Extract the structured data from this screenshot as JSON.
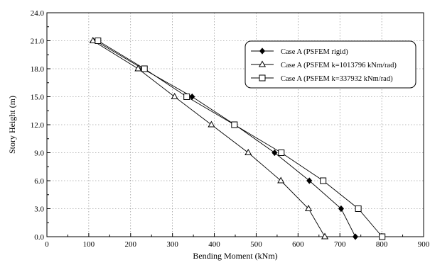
{
  "chart_data": {
    "type": "line",
    "xlabel": "Bending Moment (kNm)",
    "ylabel": "Story Height (m)",
    "xlim": [
      0,
      900
    ],
    "ylim": [
      0,
      24
    ],
    "x_ticks": [
      "0",
      "100",
      "200",
      "300",
      "400",
      "500",
      "600",
      "700",
      "800",
      "900"
    ],
    "y_ticks": [
      "0.0",
      "3.0",
      "6.0",
      "9.0",
      "12.0",
      "15.0",
      "18.0",
      "21.0",
      "24.0"
    ],
    "grid": true,
    "legend_position": "top-right",
    "series": [
      {
        "name": "Case A (PSFEM rigid)",
        "marker": "diamond-filled",
        "points": [
          [
            737,
            0
          ],
          [
            703,
            3
          ],
          [
            627,
            6
          ],
          [
            544,
            9
          ],
          [
            449,
            12
          ],
          [
            347,
            15
          ],
          [
            229,
            18
          ],
          [
            116,
            21
          ]
        ]
      },
      {
        "name": "Case A (PSFEM k=1013796 kNm/rad)",
        "marker": "triangle-open",
        "points": [
          [
            664,
            0
          ],
          [
            625,
            3
          ],
          [
            559,
            6
          ],
          [
            481,
            9
          ],
          [
            393,
            12
          ],
          [
            305,
            15
          ],
          [
            218,
            18
          ],
          [
            110,
            21
          ]
        ]
      },
      {
        "name": "Case A (PSFEM k=337932 kNm/rad)",
        "marker": "square-open",
        "points": [
          [
            801,
            0
          ],
          [
            744,
            3
          ],
          [
            660,
            6
          ],
          [
            560,
            9
          ],
          [
            448,
            12
          ],
          [
            334,
            15
          ],
          [
            233,
            18
          ],
          [
            122,
            21
          ]
        ]
      }
    ]
  }
}
